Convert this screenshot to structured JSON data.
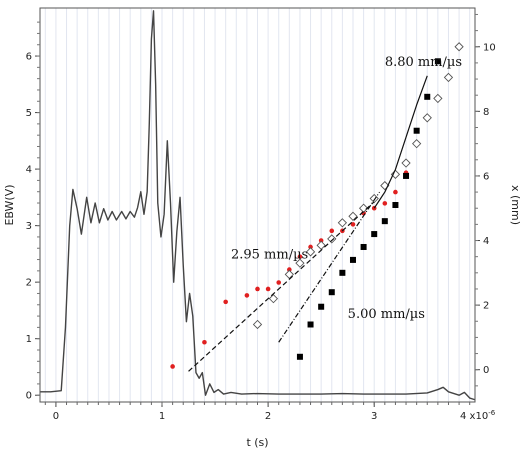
{
  "chart_data": {
    "type": "line",
    "xlabel": "t (s)",
    "ylabel_left": "EBW(V)",
    "ylabel_right": "x (mm)",
    "x_exponent_label": "4 x10",
    "x_exponent_sup": "-6",
    "xlim": [
      -1.5e-07,
      3.95e-06
    ],
    "ylim_left": [
      -0.12,
      6.85
    ],
    "ylim_right": [
      -1.0,
      11.2
    ],
    "x_ticks": [
      {
        "value": 0,
        "label": "0"
      },
      {
        "value": 1e-06,
        "label": "1"
      },
      {
        "value": 2e-06,
        "label": "2"
      },
      {
        "value": 3e-06,
        "label": "3"
      }
    ],
    "y_left_ticks": [
      {
        "value": 0,
        "label": "0"
      },
      {
        "value": 1,
        "label": "1"
      },
      {
        "value": 2,
        "label": "2"
      },
      {
        "value": 3,
        "label": "3"
      },
      {
        "value": 4,
        "label": "4"
      },
      {
        "value": 5,
        "label": "5"
      },
      {
        "value": 6,
        "label": "6"
      }
    ],
    "y_right_ticks": [
      {
        "value": 0,
        "label": "0"
      },
      {
        "value": 2,
        "label": "2"
      },
      {
        "value": 4,
        "label": "4"
      },
      {
        "value": 6,
        "label": "6"
      },
      {
        "value": 8,
        "label": "8"
      },
      {
        "value": 10,
        "label": "10"
      }
    ],
    "grid": "vertical minor lines",
    "annotations": [
      {
        "text": "8.80 mm/µs",
        "x": 3.1e-06,
        "y": 9.4
      },
      {
        "text": "2.95 mm/µs",
        "x": 1.65e-06,
        "y": 3.45
      },
      {
        "text": "5.00 mm/µs",
        "x": 2.75e-06,
        "y": 1.6
      }
    ],
    "series": [
      {
        "axis": "left",
        "style": "line",
        "color": "#444444",
        "values": [
          [
            -1.5e-07,
            0.06
          ],
          [
            -5e-08,
            0.06
          ],
          [
            5e-08,
            0.08
          ],
          [
            9e-08,
            1.2
          ],
          [
            1.3e-07,
            3.0
          ],
          [
            1.6e-07,
            3.64
          ],
          [
            2e-07,
            3.3
          ],
          [
            2.4e-07,
            2.85
          ],
          [
            2.9e-07,
            3.5
          ],
          [
            3.3e-07,
            3.05
          ],
          [
            3.7e-07,
            3.4
          ],
          [
            4.1e-07,
            3.05
          ],
          [
            4.5e-07,
            3.3
          ],
          [
            4.9e-07,
            3.1
          ],
          [
            5.3e-07,
            3.25
          ],
          [
            5.7e-07,
            3.1
          ],
          [
            6.2e-07,
            3.25
          ],
          [
            6.6e-07,
            3.12
          ],
          [
            7e-07,
            3.25
          ],
          [
            7.4e-07,
            3.15
          ],
          [
            7.7e-07,
            3.32
          ],
          [
            8e-07,
            3.6
          ],
          [
            8.3e-07,
            3.2
          ],
          [
            8.6e-07,
            3.6
          ],
          [
            8.8e-07,
            4.8
          ],
          [
            9e-07,
            6.3
          ],
          [
            9.2e-07,
            6.8
          ],
          [
            9.4e-07,
            5.5
          ],
          [
            9.6e-07,
            3.4
          ],
          [
            9.9e-07,
            2.8
          ],
          [
            1.02e-06,
            3.2
          ],
          [
            1.05e-06,
            4.5
          ],
          [
            1.08e-06,
            3.4
          ],
          [
            1.11e-06,
            2.0
          ],
          [
            1.14e-06,
            2.9
          ],
          [
            1.17e-06,
            3.5
          ],
          [
            1.2e-06,
            2.3
          ],
          [
            1.23e-06,
            1.3
          ],
          [
            1.26e-06,
            1.8
          ],
          [
            1.29e-06,
            1.4
          ],
          [
            1.32e-06,
            0.4
          ],
          [
            1.35e-06,
            0.3
          ],
          [
            1.38e-06,
            0.4
          ],
          [
            1.41e-06,
            0.0
          ],
          [
            1.45e-06,
            0.2
          ],
          [
            1.49e-06,
            0.05
          ],
          [
            1.53e-06,
            0.1
          ],
          [
            1.58e-06,
            0.02
          ],
          [
            1.65e-06,
            0.05
          ],
          [
            1.75e-06,
            0.02
          ],
          [
            1.9e-06,
            0.03
          ],
          [
            2.1e-06,
            0.02
          ],
          [
            2.3e-06,
            0.02
          ],
          [
            2.5e-06,
            0.02
          ],
          [
            2.7e-06,
            0.03
          ],
          [
            2.9e-06,
            0.02
          ],
          [
            3.1e-06,
            0.02
          ],
          [
            3.3e-06,
            0.02
          ],
          [
            3.5e-06,
            0.04
          ],
          [
            3.6e-06,
            0.1
          ],
          [
            3.65e-06,
            0.14
          ],
          [
            3.7e-06,
            0.06
          ],
          [
            3.8e-06,
            0.0
          ],
          [
            3.85e-06,
            0.05
          ],
          [
            3.9e-06,
            -0.05
          ],
          [
            3.95e-06,
            -0.08
          ]
        ]
      },
      {
        "axis": "right",
        "style": "markers",
        "marker": "circle",
        "color": "#e02020",
        "values": [
          [
            1.1e-06,
            0.1
          ],
          [
            1.4e-06,
            0.85
          ],
          [
            1.6e-06,
            2.1
          ],
          [
            1.8e-06,
            2.3
          ],
          [
            1.9e-06,
            2.5
          ],
          [
            2e-06,
            2.5
          ],
          [
            2.1e-06,
            2.7
          ],
          [
            2.2e-06,
            3.1
          ],
          [
            2.3e-06,
            3.5
          ],
          [
            2.4e-06,
            3.8
          ],
          [
            2.5e-06,
            4.0
          ],
          [
            2.6e-06,
            4.3
          ],
          [
            2.7e-06,
            4.3
          ],
          [
            2.8e-06,
            4.5
          ],
          [
            2.9e-06,
            4.85
          ],
          [
            3e-06,
            5.0
          ],
          [
            3.1e-06,
            5.15
          ],
          [
            3.2e-06,
            5.5
          ],
          [
            3.3e-06,
            6.1
          ]
        ]
      },
      {
        "axis": "right",
        "style": "markers",
        "marker": "square",
        "color": "#000000",
        "values": [
          [
            2.3e-06,
            0.4
          ],
          [
            2.4e-06,
            1.4
          ],
          [
            2.5e-06,
            1.95
          ],
          [
            2.6e-06,
            2.4
          ],
          [
            2.7e-06,
            3.0
          ],
          [
            2.8e-06,
            3.4
          ],
          [
            2.9e-06,
            3.8
          ],
          [
            3e-06,
            4.2
          ],
          [
            3.1e-06,
            4.6
          ],
          [
            3.2e-06,
            5.1
          ],
          [
            3.3e-06,
            6.0
          ],
          [
            3.4e-06,
            7.4
          ],
          [
            3.5e-06,
            8.45
          ],
          [
            3.6e-06,
            9.55
          ]
        ]
      },
      {
        "axis": "right",
        "style": "markers",
        "marker": "open-diamond",
        "color": "#555555",
        "values": [
          [
            1.9e-06,
            1.4
          ],
          [
            2.05e-06,
            2.2
          ],
          [
            2.2e-06,
            2.95
          ],
          [
            2.3e-06,
            3.3
          ],
          [
            2.4e-06,
            3.65
          ],
          [
            2.5e-06,
            3.85
          ],
          [
            2.6e-06,
            4.05
          ],
          [
            2.7e-06,
            4.55
          ],
          [
            2.8e-06,
            4.75
          ],
          [
            2.9e-06,
            5.0
          ],
          [
            3e-06,
            5.3
          ],
          [
            3.1e-06,
            5.7
          ],
          [
            3.2e-06,
            6.05
          ],
          [
            3.3e-06,
            6.4
          ],
          [
            3.4e-06,
            7.0
          ],
          [
            3.5e-06,
            7.8
          ],
          [
            3.6e-06,
            8.4
          ],
          [
            3.7e-06,
            9.05
          ],
          [
            3.8e-06,
            10.0
          ]
        ]
      },
      {
        "axis": "right",
        "style": "dashed-line",
        "color": "#111111",
        "values": [
          [
            1.25e-06,
            -0.05
          ],
          [
            3e-06,
            5.2
          ]
        ]
      },
      {
        "axis": "right",
        "style": "dash-dot-line",
        "color": "#111111",
        "values": [
          [
            2.1e-06,
            0.85
          ],
          [
            3.05e-06,
            5.5
          ]
        ]
      },
      {
        "axis": "right",
        "style": "line",
        "color": "#111111",
        "values": [
          [
            3e-06,
            5.0
          ],
          [
            3.1e-06,
            5.5
          ],
          [
            3.2e-06,
            6.2
          ],
          [
            3.3e-06,
            7.2
          ],
          [
            3.4e-06,
            8.2
          ],
          [
            3.5e-06,
            9.1
          ]
        ]
      }
    ]
  }
}
